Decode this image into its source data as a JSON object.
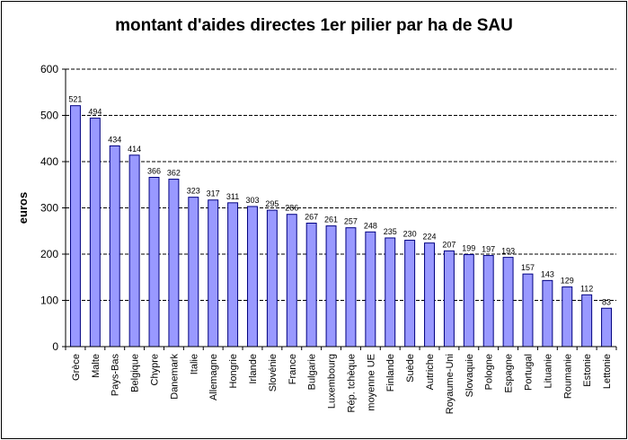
{
  "chart_data": {
    "type": "bar",
    "title": "montant d'aides directes 1er pilier par ha de SAU",
    "xlabel": "",
    "ylabel": "euros",
    "ylim": [
      0,
      600
    ],
    "yticks": [
      0,
      100,
      200,
      300,
      400,
      500,
      600
    ],
    "grid": true,
    "legend": "none",
    "categories": [
      "Grèce",
      "Malte",
      "Pays-Bas",
      "Belgique",
      "Chypre",
      "Danemark",
      "Italie",
      "Allemagne",
      "Hongrie",
      "Irlande",
      "Slovénie",
      "France",
      "Bulgarie",
      "Luxembourg",
      "Rép. tchèque",
      "moyenne UE",
      "Finlande",
      "Suède",
      "Autriche",
      "Royaume-Uni",
      "Slovaquie",
      "Pologne",
      "Espagne",
      "Portugal",
      "Lituanie",
      "Roumanie",
      "Estonie",
      "Lettonie"
    ],
    "values": [
      521,
      494,
      434,
      414,
      366,
      362,
      323,
      317,
      311,
      303,
      295,
      286,
      267,
      261,
      257,
      248,
      235,
      230,
      224,
      207,
      199,
      197,
      193,
      157,
      143,
      129,
      112,
      83
    ],
    "bar_color": "#9999ff",
    "bar_edge_color": "#000080",
    "gridline_color": "#000000"
  }
}
